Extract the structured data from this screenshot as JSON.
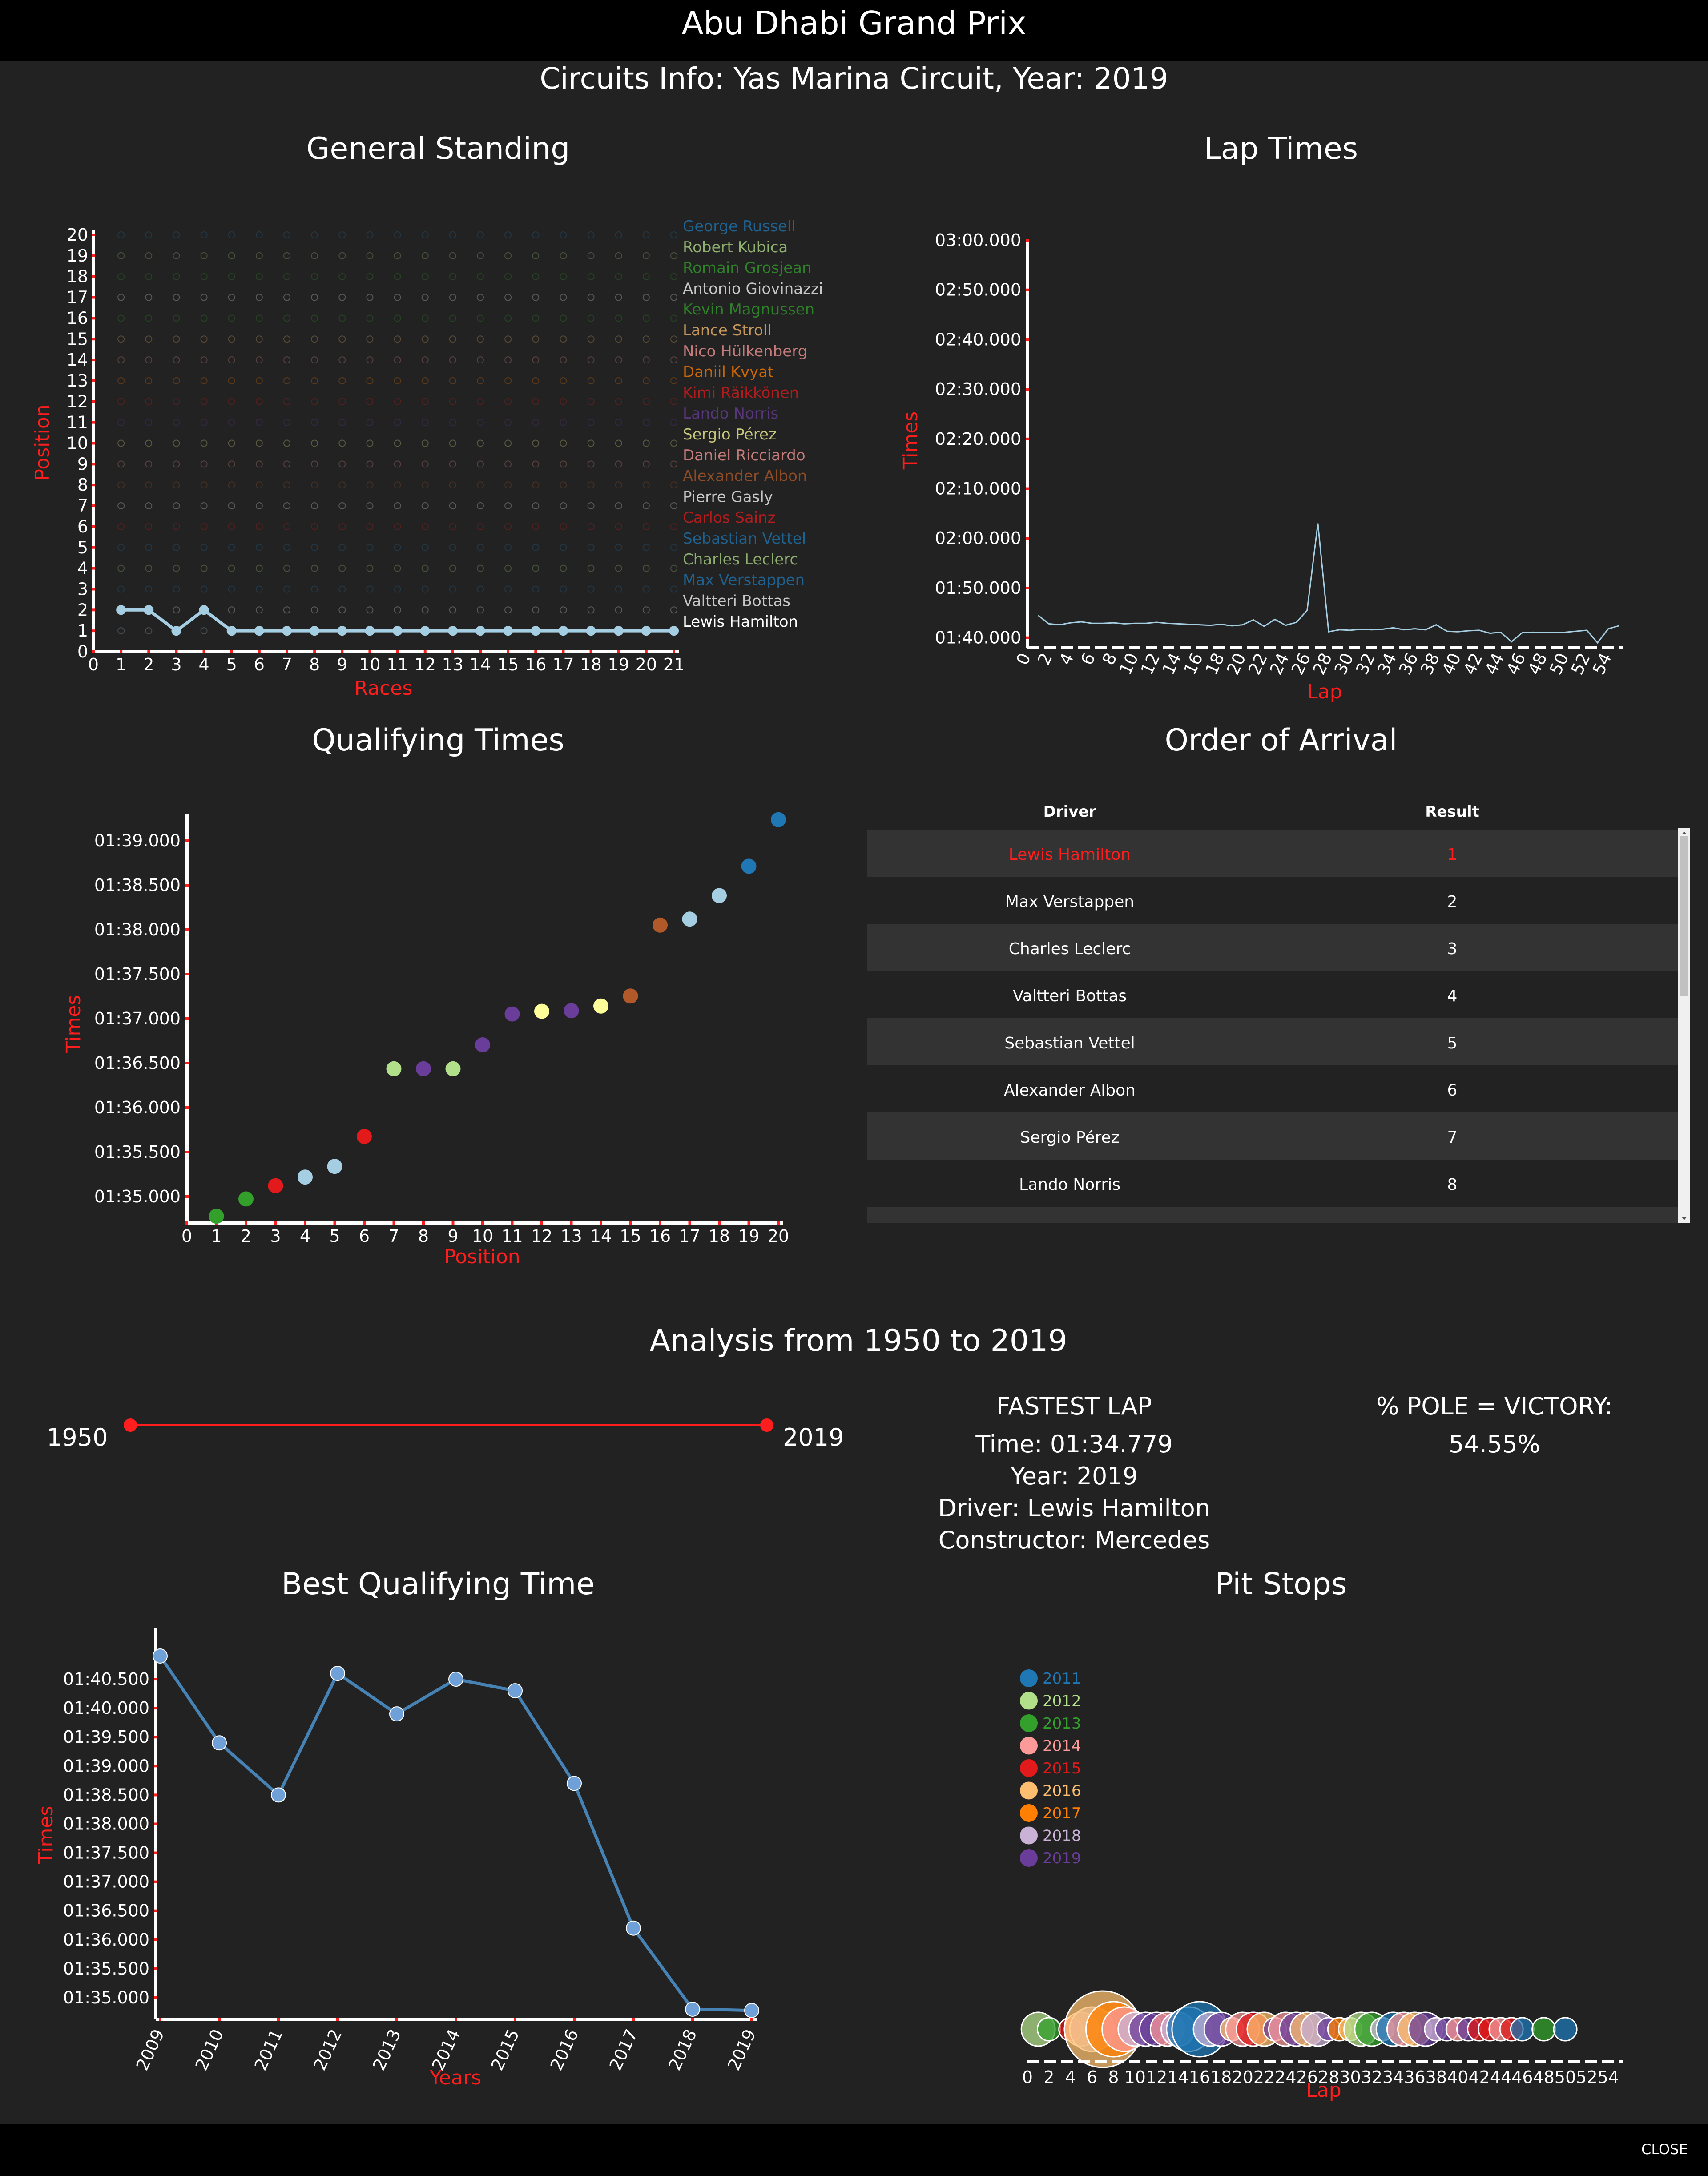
{
  "page": {
    "title": "Abu Dhabi Grand Prix",
    "subtitle": "Circuits Info: Yas Marina Circuit, Year: 2019",
    "close_label": "CLOSE"
  },
  "general_standing": {
    "title": "General Standing",
    "xlabel": "Races",
    "ylabel": "Position",
    "drivers": [
      {
        "name": "George Russell",
        "color": "#1f77b4"
      },
      {
        "name": "Robert Kubica",
        "color": "#b2df8a"
      },
      {
        "name": "Romain Grosjean",
        "color": "#33a02c"
      },
      {
        "name": "Antonio Giovinazzi",
        "color": "#ffffff"
      },
      {
        "name": "Kevin Magnussen",
        "color": "#33a02c"
      },
      {
        "name": "Lance Stroll",
        "color": "#fdbf6f"
      },
      {
        "name": "Nico Hülkenberg",
        "color": "#fb9a99"
      },
      {
        "name": "Daniil Kvyat",
        "color": "#ff7f00"
      },
      {
        "name": "Kimi Räikkönen",
        "color": "#e31a1c"
      },
      {
        "name": "Lando Norris",
        "color": "#6a3d9a"
      },
      {
        "name": "Sergio Pérez",
        "color": "#ffff99"
      },
      {
        "name": "Daniel Ricciardo",
        "color": "#fb9a99"
      },
      {
        "name": "Alexander Albon",
        "color": "#b15928"
      },
      {
        "name": "Pierre Gasly",
        "color": "#ffffff"
      },
      {
        "name": "Carlos Sainz",
        "color": "#e31a1c"
      },
      {
        "name": "Sebastian Vettel",
        "color": "#1f77b4"
      },
      {
        "name": "Charles Leclerc",
        "color": "#b2df8a"
      },
      {
        "name": "Max Verstappen",
        "color": "#1f77b4"
      },
      {
        "name": "Valtteri Bottas",
        "color": "#ffffff"
      },
      {
        "name": "Lewis Hamilton",
        "color": "#a6cee3"
      }
    ]
  },
  "lap_times": {
    "title": "Lap Times",
    "xlabel": "Lap",
    "ylabel": "Times"
  },
  "qualifying": {
    "title": "Qualifying Times",
    "xlabel": "Position",
    "ylabel": "Times"
  },
  "arrival": {
    "title": "Order of Arrival",
    "col_driver": "Driver",
    "col_result": "Result",
    "rows": [
      {
        "driver": "Lewis Hamilton",
        "result": "1"
      },
      {
        "driver": "Max Verstappen",
        "result": "2"
      },
      {
        "driver": "Charles Leclerc",
        "result": "3"
      },
      {
        "driver": "Valtteri Bottas",
        "result": "4"
      },
      {
        "driver": "Sebastian Vettel",
        "result": "5"
      },
      {
        "driver": "Alexander Albon",
        "result": "6"
      },
      {
        "driver": "Sergio Pérez",
        "result": "7"
      },
      {
        "driver": "Lando Norris",
        "result": "8"
      }
    ]
  },
  "analysis": {
    "title": "Analysis from 1950 to 2019",
    "range_start": "1950",
    "range_end": "2019",
    "slider_color": "#ff1e1e",
    "fastest_lap_title": "FASTEST LAP",
    "fastest_time": "Time: 01:34.779",
    "fastest_year": "Year: 2019",
    "fastest_driver": "Driver: Lewis Hamilton",
    "fastest_constructor": "Constructor: Mercedes",
    "pole_title": "% POLE = VICTORY:",
    "pole_value": "54.55%"
  },
  "best_qualifying": {
    "title": "Best Qualifying Time",
    "xlabel": "Years",
    "ylabel": "Times"
  },
  "pit_stops": {
    "title": "Pit Stops",
    "xlabel": "Lap",
    "legend": [
      {
        "year": "2011",
        "color": "#1f77b4"
      },
      {
        "year": "2012",
        "color": "#b2df8a"
      },
      {
        "year": "2013",
        "color": "#33a02c"
      },
      {
        "year": "2014",
        "color": "#fb9a99"
      },
      {
        "year": "2015",
        "color": "#e31a1c"
      },
      {
        "year": "2016",
        "color": "#fdbf6f"
      },
      {
        "year": "2017",
        "color": "#ff7f00"
      },
      {
        "year": "2018",
        "color": "#cab2d6"
      },
      {
        "year": "2019",
        "color": "#6a3d9a"
      }
    ]
  },
  "chart_data": [
    {
      "id": "general_standing",
      "type": "line",
      "x": [
        0,
        1,
        2,
        3,
        4,
        5,
        6,
        7,
        8,
        9,
        10,
        11,
        12,
        13,
        14,
        15,
        16,
        17,
        18,
        19,
        20,
        21
      ],
      "xlim": [
        0,
        21
      ],
      "ylim": [
        0,
        20
      ],
      "x_ticks": [
        "0",
        "1",
        "2",
        "3",
        "4",
        "5",
        "6",
        "7",
        "8",
        "9",
        "10",
        "11",
        "12",
        "13",
        "14",
        "15",
        "16",
        "17",
        "18",
        "19",
        "20",
        "21"
      ],
      "y_ticks": [
        "0",
        "1",
        "2",
        "3",
        "4",
        "5",
        "6",
        "7",
        "8",
        "9",
        "10",
        "11",
        "12",
        "13",
        "14",
        "15",
        "16",
        "17",
        "18",
        "19",
        "20"
      ],
      "highlight_series": {
        "name": "Lewis Hamilton",
        "x": [
          1,
          2,
          3,
          4,
          5,
          6,
          7,
          8,
          9,
          10,
          11,
          12,
          13,
          14,
          15,
          16,
          17,
          18,
          19,
          20,
          21
        ],
        "values": [
          2,
          2,
          1,
          2,
          1,
          1,
          1,
          1,
          1,
          1,
          1,
          1,
          1,
          1,
          1,
          1,
          1,
          1,
          1,
          1,
          1
        ]
      }
    },
    {
      "id": "lap_times",
      "type": "line",
      "x_ticks": [
        "0",
        "2",
        "4",
        "6",
        "8",
        "10",
        "12",
        "14",
        "16",
        "18",
        "20",
        "22",
        "24",
        "26",
        "28",
        "30",
        "32",
        "34",
        "36",
        "38",
        "40",
        "42",
        "44",
        "46",
        "48",
        "50",
        "52",
        "54"
      ],
      "y_ticks": [
        "01:40.000",
        "01:50.000",
        "02:00.000",
        "02:10.000",
        "02:20.000",
        "02:30.000",
        "02:40.000",
        "02:50.000",
        "03:00.000"
      ],
      "ylim_seconds": [
        98,
        180
      ],
      "laps": [
        1,
        2,
        3,
        4,
        5,
        6,
        7,
        8,
        9,
        10,
        11,
        12,
        13,
        14,
        15,
        16,
        17,
        18,
        19,
        20,
        21,
        22,
        23,
        24,
        25,
        26,
        27,
        28,
        29,
        30,
        31,
        32,
        33,
        34,
        35,
        36,
        37,
        38,
        39,
        40,
        41,
        42,
        43,
        44,
        45,
        46,
        47,
        48,
        49,
        50,
        51,
        52,
        53,
        54,
        55
      ],
      "seconds": [
        104.5,
        102.8,
        102.6,
        103.0,
        103.2,
        102.9,
        102.9,
        103.0,
        102.8,
        102.9,
        102.9,
        103.1,
        102.9,
        102.8,
        102.7,
        102.6,
        102.5,
        102.7,
        102.4,
        102.6,
        103.6,
        102.3,
        103.7,
        102.5,
        103.1,
        105.5,
        123.0,
        101.2,
        101.6,
        101.5,
        101.7,
        101.6,
        101.7,
        102.0,
        101.6,
        101.8,
        101.6,
        102.6,
        101.3,
        101.2,
        101.4,
        101.5,
        100.9,
        101.1,
        99.2,
        101.0,
        101.1,
        101.0,
        101.0,
        101.1,
        101.3,
        101.5,
        99.0,
        101.8,
        102.4
      ]
    },
    {
      "id": "qualifying",
      "type": "scatter",
      "xlim": [
        0,
        20
      ],
      "x_ticks": [
        "0",
        "1",
        "2",
        "3",
        "4",
        "5",
        "6",
        "7",
        "8",
        "9",
        "10",
        "11",
        "12",
        "13",
        "14",
        "15",
        "16",
        "17",
        "18",
        "19",
        "20"
      ],
      "y_ticks": [
        "01:35.000",
        "01:35.500",
        "01:36.000",
        "01:36.500",
        "01:37.000",
        "01:37.500",
        "01:38.000",
        "01:38.500",
        "01:39.000"
      ],
      "ylim_seconds": [
        94.7,
        99.3
      ],
      "x": [
        1,
        2,
        3,
        4,
        5,
        6,
        7,
        8,
        9,
        10,
        11,
        12,
        13,
        14,
        15,
        16,
        17,
        18,
        19,
        20
      ],
      "seconds": [
        94.779,
        94.973,
        95.122,
        95.219,
        95.339,
        95.675,
        96.436,
        96.436,
        96.436,
        96.705,
        97.052,
        97.082,
        97.089,
        97.141,
        97.254,
        98.051,
        98.119,
        98.383,
        98.713,
        99.236
      ],
      "colors": [
        "#33a02c",
        "#33a02c",
        "#e31a1c",
        "#a6cee3",
        "#a6cee3",
        "#e31a1c",
        "#b2df8a",
        "#6a3d9a",
        "#b2df8a",
        "#6a3d9a",
        "#6a3d9a",
        "#ffff99",
        "#6a3d9a",
        "#ffff99",
        "#b15928",
        "#b15928",
        "#a6cee3",
        "#a6cee3",
        "#1f77b4",
        "#1f77b4"
      ]
    },
    {
      "id": "best_qualifying",
      "type": "line",
      "categories": [
        "2009",
        "2010",
        "2011",
        "2012",
        "2013",
        "2014",
        "2015",
        "2016",
        "2017",
        "2018",
        "2019"
      ],
      "seconds": [
        100.9,
        99.4,
        98.5,
        100.6,
        99.9,
        100.5,
        100.3,
        98.7,
        96.2,
        94.8,
        94.779
      ],
      "y_ticks": [
        "01:35.000",
        "01:35.500",
        "01:36.000",
        "01:36.500",
        "01:37.000",
        "01:37.500",
        "01:38.000",
        "01:38.500",
        "01:39.000",
        "01:39.500",
        "01:40.000",
        "01:40.500"
      ],
      "ylim_seconds": [
        94.7,
        101.0
      ]
    },
    {
      "id": "pit_stops",
      "type": "scatter",
      "x_ticks": [
        "0",
        "2",
        "4",
        "6",
        "8",
        "10",
        "12",
        "14",
        "16",
        "18",
        "20",
        "22",
        "24",
        "26",
        "28",
        "30",
        "32",
        "34",
        "36",
        "38",
        "40",
        "42",
        "44",
        "46",
        "48",
        "50",
        "52",
        "54"
      ],
      "bubbles": [
        {
          "lap": 1,
          "year": "2012",
          "size": 2
        },
        {
          "lap": 2,
          "year": "2013",
          "size": 1
        },
        {
          "lap": 4,
          "year": "2015",
          "size": 1
        },
        {
          "lap": 5,
          "year": "2014",
          "size": 2
        },
        {
          "lap": 6,
          "year": "2018",
          "size": 3
        },
        {
          "lap": 7,
          "year": "2016",
          "size": 6
        },
        {
          "lap": 8,
          "year": "2017",
          "size": 4
        },
        {
          "lap": 9,
          "year": "2014",
          "size": 3
        },
        {
          "lap": 10,
          "year": "2018",
          "size": 2
        },
        {
          "lap": 11,
          "year": "2019",
          "size": 2
        },
        {
          "lap": 12,
          "year": "2019",
          "size": 2
        },
        {
          "lap": 13,
          "year": "2014",
          "size": 2
        },
        {
          "lap": 14,
          "year": "2018",
          "size": 2
        },
        {
          "lap": 15,
          "year": "2011",
          "size": 3
        },
        {
          "lap": 16,
          "year": "2011",
          "size": 4
        },
        {
          "lap": 17,
          "year": "2018",
          "size": 2
        },
        {
          "lap": 18,
          "year": "2019",
          "size": 2
        },
        {
          "lap": 19,
          "year": "2016",
          "size": 1
        },
        {
          "lap": 20,
          "year": "2014",
          "size": 2
        },
        {
          "lap": 21,
          "year": "2015",
          "size": 2
        },
        {
          "lap": 22,
          "year": "2016",
          "size": 2
        },
        {
          "lap": 23,
          "year": "2019",
          "size": 1
        },
        {
          "lap": 24,
          "year": "2014",
          "size": 2
        },
        {
          "lap": 25,
          "year": "2019",
          "size": 2
        },
        {
          "lap": 26,
          "year": "2016",
          "size": 2
        },
        {
          "lap": 27,
          "year": "2018",
          "size": 2
        },
        {
          "lap": 28,
          "year": "2019",
          "size": 1
        },
        {
          "lap": 29,
          "year": "2017",
          "size": 1
        },
        {
          "lap": 30,
          "year": "2016",
          "size": 1
        },
        {
          "lap": 31,
          "year": "2012",
          "size": 2
        },
        {
          "lap": 32,
          "year": "2013",
          "size": 2
        },
        {
          "lap": 33,
          "year": "2018",
          "size": 1
        },
        {
          "lap": 34,
          "year": "2011",
          "size": 2
        },
        {
          "lap": 35,
          "year": "2014",
          "size": 2
        },
        {
          "lap": 36,
          "year": "2016",
          "size": 2
        },
        {
          "lap": 37,
          "year": "2019",
          "size": 2
        },
        {
          "lap": 38,
          "year": "2018",
          "size": 1
        },
        {
          "lap": 39,
          "year": "2019",
          "size": 1
        },
        {
          "lap": 40,
          "year": "2014",
          "size": 1
        },
        {
          "lap": 41,
          "year": "2019",
          "size": 1
        },
        {
          "lap": 42,
          "year": "2015",
          "size": 1
        },
        {
          "lap": 43,
          "year": "2015",
          "size": 1
        },
        {
          "lap": 44,
          "year": "2014",
          "size": 1
        },
        {
          "lap": 45,
          "year": "2015",
          "size": 1
        },
        {
          "lap": 46,
          "year": "2011",
          "size": 1
        },
        {
          "lap": 48,
          "year": "2013",
          "size": 1
        },
        {
          "lap": 50,
          "year": "2011",
          "size": 1
        }
      ]
    }
  ]
}
